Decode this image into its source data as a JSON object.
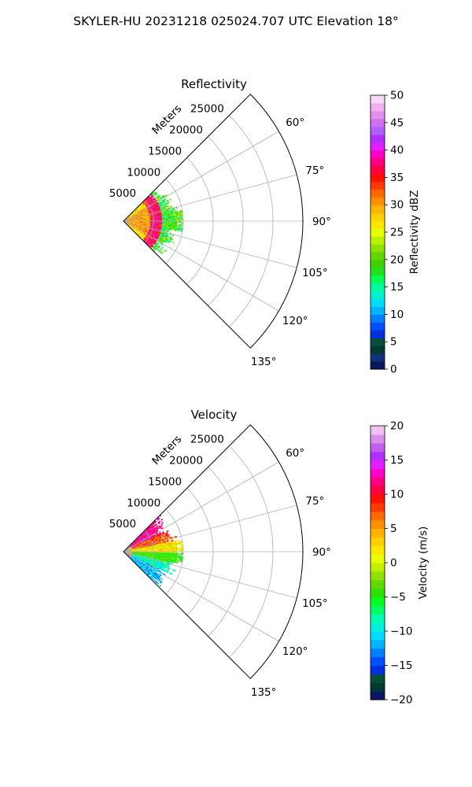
{
  "figure": {
    "suptitle": "SKYLER-HU  20231218  025024.707 UTC Elevation 18°"
  },
  "chart_data": [
    {
      "type": "polar-sector",
      "title": "Reflectivity",
      "radial_label": "Meters",
      "radial_ticks": [
        5000,
        10000,
        15000,
        20000,
        25000
      ],
      "radial_tick_labels": [
        "5000",
        "10000",
        "15000",
        "20000",
        "25000"
      ],
      "rmax": 30000,
      "theta_range_deg": [
        45,
        135
      ],
      "angle_ticks": [
        60,
        75,
        90,
        105,
        120,
        135
      ],
      "angle_tick_labels": [
        "60°",
        "75°",
        "90°",
        "105°",
        "120°",
        "135°"
      ],
      "data_extent_m": 10000,
      "dominant_features": [
        {
          "azimuth_deg_center": 90,
          "range_m": [
            0,
            4500
          ],
          "value_range": [
            28,
            35
          ]
        },
        {
          "azimuth_deg_center": 90,
          "range_m": [
            4500,
            6500
          ],
          "value_range": [
            33,
            42
          ]
        },
        {
          "azimuth_deg_center": 90,
          "range_m": [
            6500,
            10000
          ],
          "value_range": [
            14,
            25
          ]
        }
      ],
      "colorbar": {
        "label": "Reflectivity dBZ",
        "vmin": 0,
        "vmax": 50,
        "ticks": [
          0,
          5,
          10,
          15,
          20,
          25,
          30,
          35,
          40,
          45,
          50
        ],
        "tick_labels": [
          "0",
          "5",
          "10",
          "15",
          "20",
          "25",
          "30",
          "35",
          "40",
          "45",
          "50"
        ],
        "colors": [
          "#0a1660",
          "#10307a",
          "#003a30",
          "#0a4c3a",
          "#0030e0",
          "#0050ff",
          "#0080ff",
          "#00b4ff",
          "#00dcff",
          "#00f0d0",
          "#00ff9c",
          "#00ff50",
          "#20e020",
          "#40d000",
          "#60d800",
          "#90e000",
          "#c0f000",
          "#e8ff00",
          "#ffe800",
          "#ffd000",
          "#ffb400",
          "#ff9000",
          "#ff6a00",
          "#ff3a00",
          "#ff1000",
          "#ff0040",
          "#ff0080",
          "#ff00c8",
          "#e020ff",
          "#b030ff",
          "#b060ff",
          "#d070f0",
          "#e090e8",
          "#f0b0f0",
          "#f8d8fa"
        ]
      }
    },
    {
      "type": "polar-sector",
      "title": "Velocity",
      "radial_label": "Meters",
      "radial_ticks": [
        5000,
        10000,
        15000,
        20000,
        25000
      ],
      "radial_tick_labels": [
        "5000",
        "10000",
        "15000",
        "20000",
        "25000"
      ],
      "rmax": 30000,
      "theta_range_deg": [
        45,
        135
      ],
      "angle_ticks": [
        60,
        75,
        90,
        105,
        120,
        135
      ],
      "angle_tick_labels": [
        "60°",
        "75°",
        "90°",
        "105°",
        "120°",
        "135°"
      ],
      "data_extent_m": 10000,
      "dominant_features": [
        {
          "azimuth_deg_range": [
            45,
            70
          ],
          "value_range": [
            8,
            16
          ]
        },
        {
          "azimuth_deg_range": [
            70,
            95
          ],
          "value_range": [
            0,
            10
          ]
        },
        {
          "azimuth_deg_range": [
            95,
            110
          ],
          "value_range": [
            -6,
            -2
          ]
        },
        {
          "azimuth_deg_range": [
            110,
            135
          ],
          "value_range": [
            -14,
            -8
          ]
        }
      ],
      "colorbar": {
        "label": "Velocity (m/s)",
        "vmin": -20,
        "vmax": 20,
        "ticks": [
          -20,
          -15,
          -10,
          -5,
          0,
          5,
          10,
          15,
          20
        ],
        "tick_labels": [
          "−20",
          "−15",
          "−10",
          "−5",
          "0",
          "5",
          "10",
          "15",
          "20"
        ],
        "colors": [
          "#0a1660",
          "#003a30",
          "#0a4c3a",
          "#0030e0",
          "#0050ff",
          "#0080ff",
          "#00b4ff",
          "#00dcff",
          "#00f0e0",
          "#00ffb0",
          "#00ff60",
          "#00ff20",
          "#30e000",
          "#60d800",
          "#90e000",
          "#c0f000",
          "#e8ff00",
          "#ffe800",
          "#ffd000",
          "#ffb400",
          "#ff9000",
          "#ff6a00",
          "#ff3a00",
          "#ff1000",
          "#ff0040",
          "#ff0080",
          "#ff00c8",
          "#e020ff",
          "#b030ff",
          "#c060f0",
          "#d890ea",
          "#f0c0f2"
        ]
      }
    }
  ]
}
